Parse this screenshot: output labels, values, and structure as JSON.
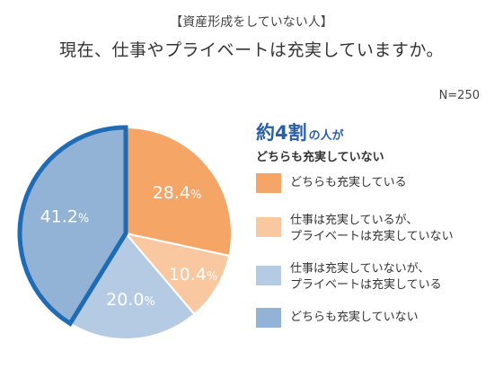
{
  "header": {
    "subtitle": "【資産形成をしていない人】",
    "title": "現在、仕事やプライベートは充実していますか。",
    "sample_size": "N=250"
  },
  "highlight": {
    "big": "約4割",
    "small": "の人が",
    "line2": "どちらも充実していない"
  },
  "colors": {
    "orange": "#f5a565",
    "light_orange": "#f9c8a0",
    "light_blue": "#b5cbe4",
    "blue": "#93b3d6",
    "outline": "#1f6cb5"
  },
  "legend": [
    {
      "lines": [
        "どちらも充実している"
      ],
      "color": "#f5a565"
    },
    {
      "lines": [
        "仕事は充実しているが、",
        "プライベートは充実していない"
      ],
      "color": "#f9c8a0"
    },
    {
      "lines": [
        "仕事は充実していないが、",
        "プライベートは充実している"
      ],
      "color": "#b5cbe4"
    },
    {
      "lines": [
        "どちらも充実していない"
      ],
      "color": "#93b3d6"
    }
  ],
  "chart_data": {
    "type": "pie",
    "start": "12 o'clock, clockwise",
    "slices": [
      {
        "label": "どちらも充実している",
        "value": 28.4,
        "display": "28.4%",
        "color": "#f5a565"
      },
      {
        "label": "仕事は充実しているが、プライベートは充実していない",
        "value": 10.4,
        "display": "10.4%",
        "color": "#f9c8a0"
      },
      {
        "label": "仕事は充実していないが、プライベートは充実している",
        "value": 20.0,
        "display": "20.0%",
        "color": "#b5cbe4"
      },
      {
        "label": "どちらも充実していない",
        "value": 41.2,
        "display": "41.2%",
        "color": "#93b3d6",
        "highlighted": true
      }
    ]
  }
}
